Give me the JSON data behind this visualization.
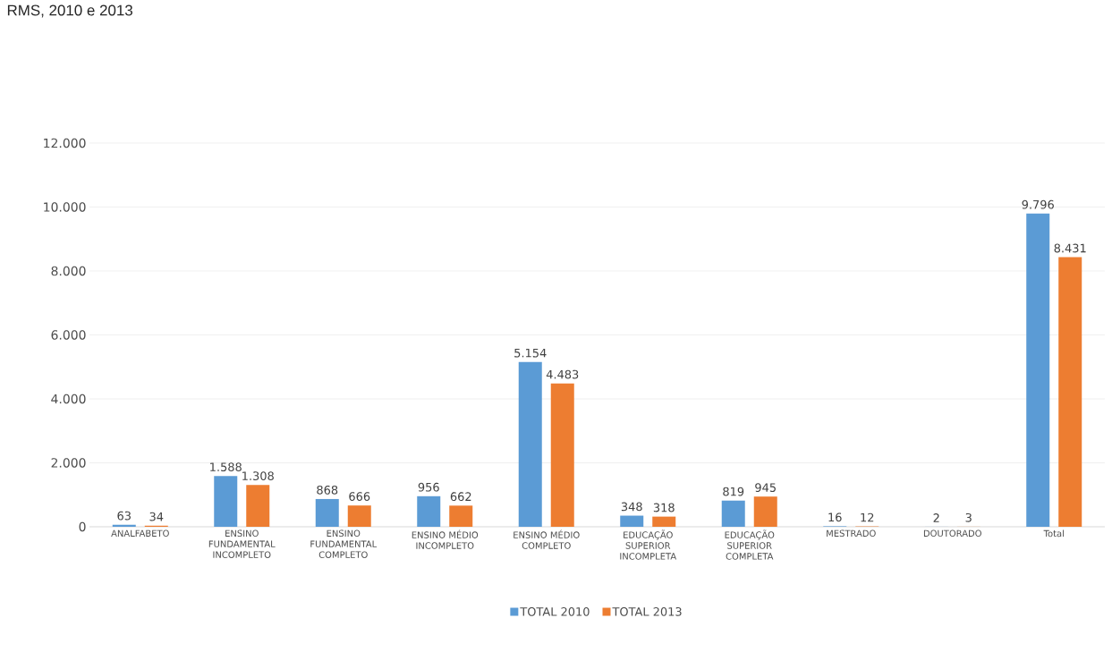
{
  "chart_data": {
    "type": "bar",
    "title": "RMS, 2010 e 2013",
    "categories": [
      "ANALFABETO",
      "ENSINO FUNDAMENTAL INCOMPLETO",
      "ENSINO FUNDAMENTAL COMPLETO",
      "ENSINO MÉDIO INCOMPLETO",
      "ENSINO MÉDIO COMPLETO",
      "EDUCAÇÃO SUPERIOR INCOMPLETA",
      "EDUCAÇÃO SUPERIOR COMPLETA",
      "MESTRADO",
      "DOUTORADO",
      "Total"
    ],
    "series": [
      {
        "name": "TOTAL 2010",
        "color": "#5b9bd5",
        "values": [
          63,
          1588,
          868,
          956,
          5154,
          348,
          819,
          16,
          2,
          9796
        ],
        "value_labels": [
          "63",
          "1.588",
          "868",
          "956",
          "5.154",
          "348",
          "819",
          "16",
          "2",
          "9.796"
        ]
      },
      {
        "name": "TOTAL 2013",
        "color": "#ed7d31",
        "values": [
          34,
          1308,
          666,
          662,
          4483,
          318,
          945,
          12,
          3,
          8431
        ],
        "value_labels": [
          "34",
          "1.308",
          "666",
          "662",
          "4.483",
          "318",
          "945",
          "12",
          "3",
          "8.431"
        ]
      }
    ],
    "ylim": [
      0,
      12000
    ],
    "yticks": [
      0,
      {
        "value": 2000,
        "label": "2.000"
      },
      {
        "value": 4000,
        "label": "4.000"
      },
      {
        "value": 6000,
        "label": "6.000"
      },
      {
        "value": 8000,
        "label": "8.000"
      },
      {
        "value": 10000,
        "label": "10.000"
      },
      {
        "value": 12000,
        "label": "12.000"
      }
    ],
    "grid": "y",
    "legend": "bottom"
  }
}
